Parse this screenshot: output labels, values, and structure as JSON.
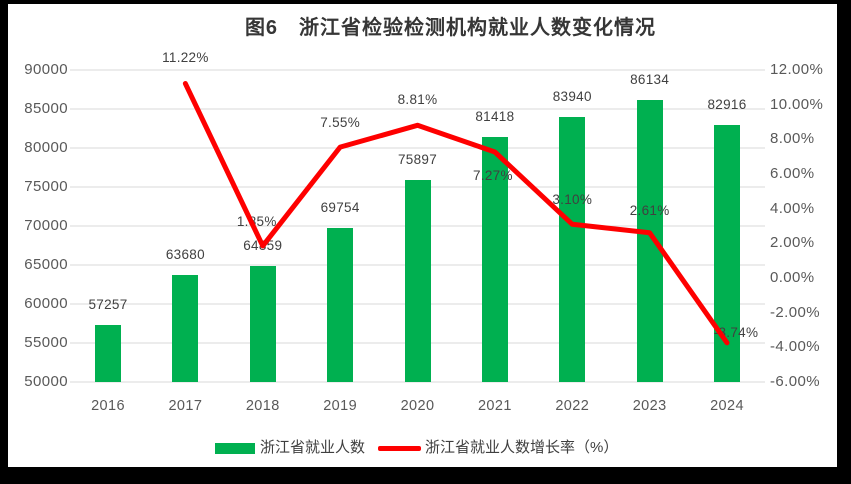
{
  "title": "图6　浙江省检验检测机构就业人数变化情况",
  "colors": {
    "frame_background": "#000000",
    "surface_background": "#ffffff",
    "bar": "#00B050",
    "line": "#FE0000",
    "grid": "#D9D9D9",
    "axis_text": "#595959",
    "label_text": "#404040",
    "title_text": "#363636"
  },
  "chart_data": {
    "type": "bar+line combo",
    "title": "图6　浙江省检验检测机构就业人数变化情况",
    "categories": [
      "2016",
      "2017",
      "2018",
      "2019",
      "2020",
      "2021",
      "2022",
      "2023",
      "2024"
    ],
    "series": [
      {
        "name": "浙江省就业人数",
        "type": "bar",
        "axis": "left",
        "color": "#00B050",
        "values": [
          57257,
          63680,
          64859,
          69754,
          75897,
          81418,
          83940,
          86134,
          82916
        ],
        "labels": [
          "57257",
          "63680",
          "64859",
          "69754",
          "75897",
          "81418",
          "83940",
          "86134",
          "82916"
        ]
      },
      {
        "name": "浙江省就业人数增长率（%）",
        "type": "line",
        "axis": "right",
        "color": "#FE0000",
        "values": [
          null,
          11.22,
          1.85,
          7.55,
          8.81,
          7.27,
          3.1,
          2.61,
          -3.74
        ],
        "labels": [
          null,
          "11.22%",
          "1.85%",
          "7.55%",
          "8.81%",
          "7.27%",
          "3.10%",
          "2.61%",
          "-3.74%"
        ],
        "label_offsets": [
          null,
          [
            0,
            -26
          ],
          [
            -6,
            -24
          ],
          [
            0,
            -24
          ],
          [
            0,
            -25
          ],
          [
            -2,
            24
          ],
          [
            0,
            -24
          ],
          [
            0,
            -22
          ],
          [
            9,
            -10
          ]
        ]
      }
    ],
    "left_axis": {
      "min": 50000,
      "max": 90000,
      "step": 5000,
      "ticks": [
        "90000",
        "85000",
        "80000",
        "75000",
        "70000",
        "65000",
        "60000",
        "55000",
        "50000"
      ]
    },
    "right_axis": {
      "min": -6,
      "max": 12,
      "step": 2,
      "ticks": [
        "12.00%",
        "10.00%",
        "8.00%",
        "6.00%",
        "4.00%",
        "2.00%",
        "0.00%",
        "-2.00%",
        "-4.00%",
        "-6.00%"
      ]
    },
    "grid": true,
    "legend_position": "bottom"
  },
  "legend": {
    "items": [
      {
        "label": "浙江省就业人数",
        "swatch": "bar"
      },
      {
        "label": "浙江省就业人数增长率（%）",
        "swatch": "line"
      }
    ]
  }
}
